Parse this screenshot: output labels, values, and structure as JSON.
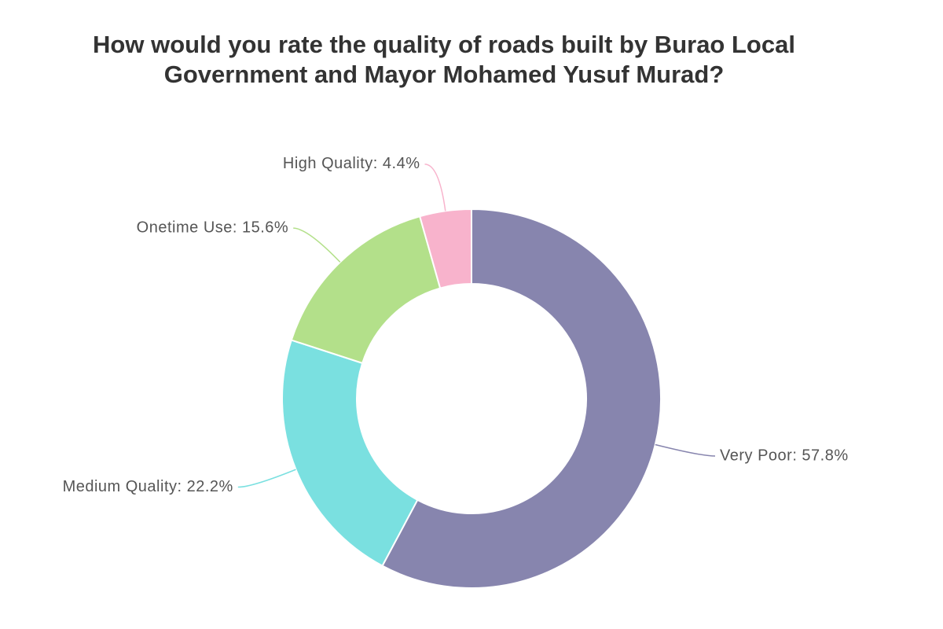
{
  "chart_data": {
    "type": "donut",
    "title": "How would you rate the quality of roads built by Burao Local Government and Mayor Mohamed Yusuf Murad?",
    "values": [
      57.8,
      22.2,
      15.6,
      4.4
    ],
    "value_labels": [
      "Very Poor: 57.8%",
      "Medium Quality: 22.2%",
      "Onetime Use: 15.6%",
      "High Quality: 4.4%"
    ],
    "colors": [
      "#8785ae",
      "#7ae0e0",
      "#b3e08a",
      "#f8b3cc"
    ]
  }
}
